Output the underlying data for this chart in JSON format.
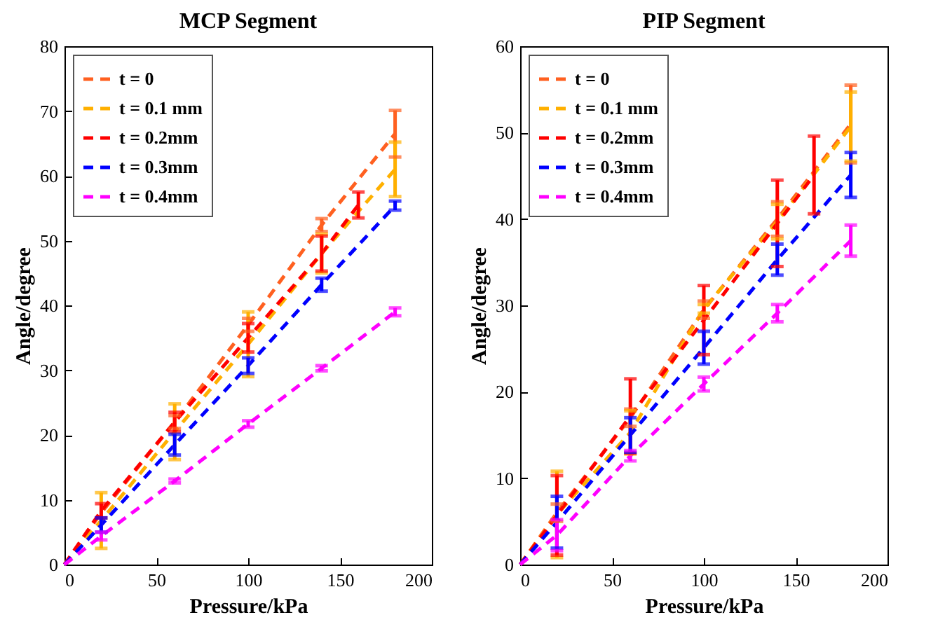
{
  "chart_data": [
    {
      "type": "line",
      "title": "MCP Segment",
      "xlabel": "Pressure/kPa",
      "ylabel": "Angle/degree",
      "xlim": [
        0,
        200
      ],
      "ylim": [
        0,
        80
      ],
      "xticks": [
        0,
        50,
        100,
        150,
        200
      ],
      "yticks": [
        0,
        10,
        20,
        30,
        40,
        50,
        60,
        70,
        80
      ],
      "legend": "top left",
      "line_style": "dashed",
      "marker": "none",
      "grid": false,
      "series": [
        {
          "name": "t = 0",
          "color": "#ff6020",
          "x": [
            0,
            20,
            60,
            100,
            140,
            180
          ],
          "values": [
            0,
            8,
            22,
            37,
            52.4,
            66.5
          ],
          "errors": [
            null,
            null,
            1,
            1,
            1,
            3.6
          ]
        },
        {
          "name": "t = 0.1 mm",
          "color": "#ffb000",
          "x": [
            0,
            20,
            60,
            100,
            140,
            180
          ],
          "values": [
            0,
            6.8,
            20.5,
            34,
            48,
            61
          ],
          "errors": [
            null,
            4.3,
            4.3,
            5,
            3,
            4.2
          ]
        },
        {
          "name": "t = 0.2mm",
          "color": "#ff0000",
          "x": [
            0,
            20,
            60,
            100,
            140,
            160
          ],
          "values": [
            0,
            8.3,
            22,
            35,
            48,
            55.5
          ],
          "errors": [
            null,
            1.1,
            1.5,
            2.2,
            2.7,
            2
          ]
        },
        {
          "name": "t = 0.3mm",
          "color": "#0000ff",
          "x": [
            0,
            20,
            60,
            100,
            140,
            180
          ],
          "values": [
            0,
            6.1,
            18.5,
            30.7,
            43.2,
            55.4
          ],
          "errors": [
            null,
            1.1,
            1.6,
            1.2,
            1,
            0.7
          ]
        },
        {
          "name": "t = 0.4mm",
          "color": "#ff00ff",
          "x": [
            0,
            20,
            60,
            100,
            140,
            180
          ],
          "values": [
            0,
            4.4,
            12.9,
            21.7,
            30.3,
            39
          ],
          "errors": [
            null,
            0.6,
            0.3,
            0.5,
            0.4,
            0.6
          ]
        }
      ]
    },
    {
      "type": "line",
      "title": "PIP Segment",
      "xlabel": "Pressure/kPa",
      "ylabel": "Angle/degree",
      "xlim": [
        0,
        200
      ],
      "ylim": [
        0,
        60
      ],
      "xticks": [
        0,
        50,
        100,
        150,
        200
      ],
      "yticks": [
        0,
        10,
        20,
        30,
        40,
        50,
        60
      ],
      "legend": "top left",
      "line_style": "dashed",
      "marker": "none",
      "grid": false,
      "series": [
        {
          "name": "t = 0",
          "color": "#ff6020",
          "x": [
            0,
            20,
            60,
            100,
            140,
            180
          ],
          "values": [
            0,
            6,
            17,
            29.5,
            40,
            51
          ],
          "errors": [
            null,
            1,
            1,
            1,
            2,
            4.5
          ]
        },
        {
          "name": "t = 0.1 mm",
          "color": "#ffb000",
          "x": [
            0,
            20,
            60,
            100,
            140,
            180
          ],
          "values": [
            0,
            5.8,
            15.3,
            29.6,
            39.7,
            50.7
          ],
          "errors": [
            null,
            5,
            2.5,
            0.5,
            2,
            4
          ]
        },
        {
          "name": "t = 0.2mm",
          "color": "#ff0000",
          "x": [
            0,
            20,
            60,
            100,
            140,
            160
          ],
          "values": [
            0,
            5.7,
            17.2,
            28.3,
            39.5,
            45.1
          ],
          "errors": [
            null,
            4.6,
            4.3,
            4,
            5,
            4.5
          ]
        },
        {
          "name": "t = 0.3mm",
          "color": "#0000ff",
          "x": [
            0,
            20,
            60,
            100,
            140,
            180
          ],
          "values": [
            0,
            4.9,
            15,
            25.1,
            35.3,
            45.1
          ],
          "errors": [
            null,
            3,
            2,
            1.9,
            1.8,
            2.6
          ]
        },
        {
          "name": "t = 0.4mm",
          "color": "#ff00ff",
          "x": [
            0,
            20,
            60,
            100,
            140,
            180
          ],
          "values": [
            0,
            3.4,
            12.6,
            20.9,
            29.1,
            37.5
          ],
          "errors": [
            null,
            1.8,
            0.6,
            0.8,
            1,
            1.8
          ]
        }
      ]
    }
  ]
}
